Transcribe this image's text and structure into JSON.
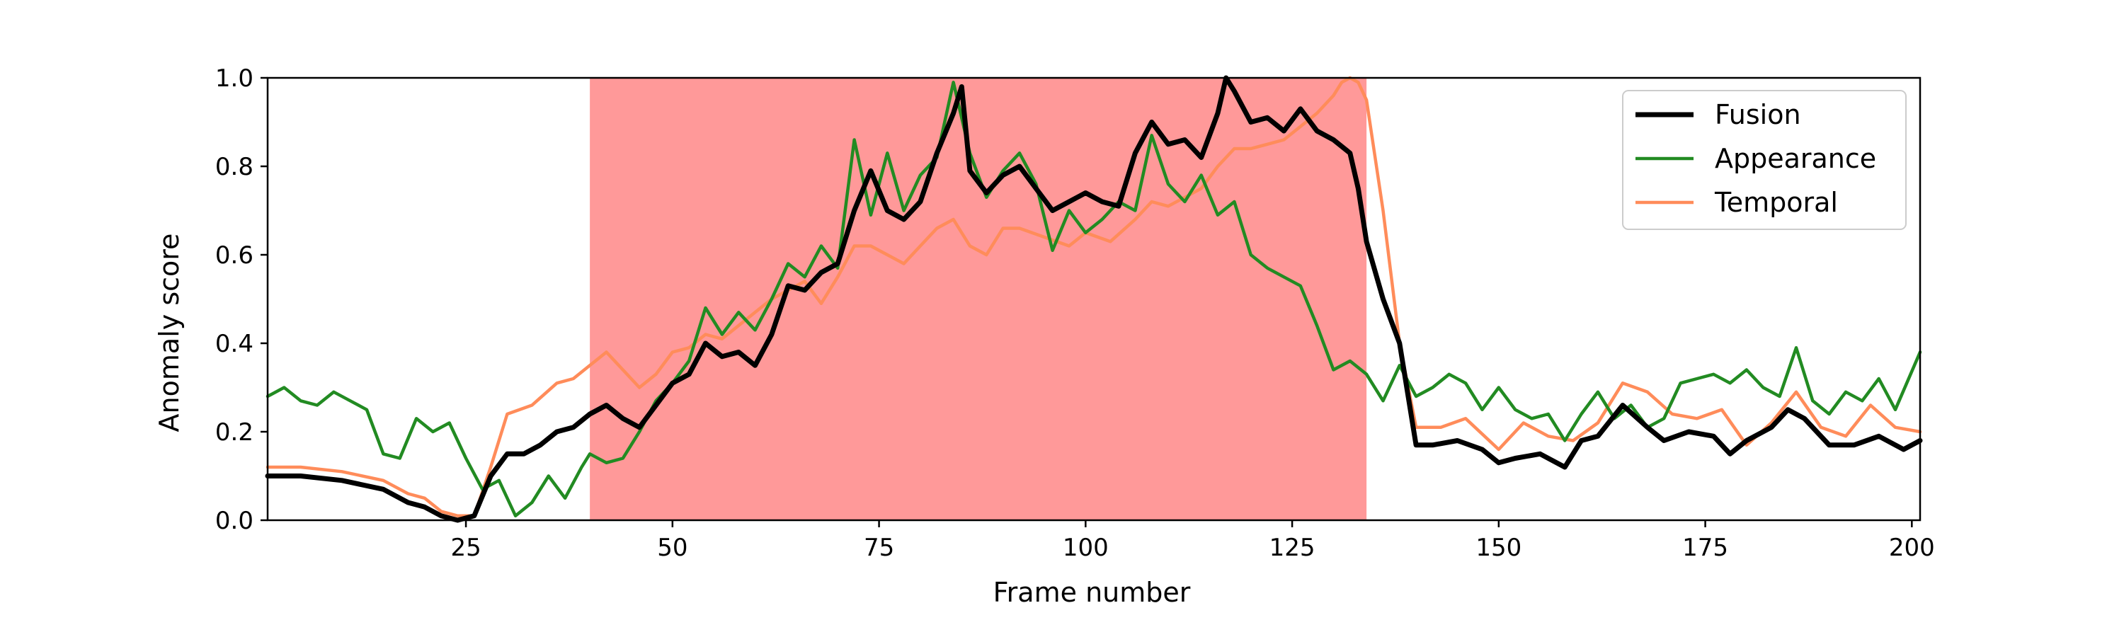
{
  "chart_data": {
    "type": "line",
    "xlabel": "Frame number",
    "ylabel": "Anomaly score",
    "xlim": [
      1,
      201
    ],
    "ylim": [
      0.0,
      1.0
    ],
    "xticks": [
      25,
      50,
      75,
      100,
      125,
      150,
      175,
      200
    ],
    "yticks": [
      0.0,
      0.2,
      0.4,
      0.6,
      0.8,
      1.0
    ],
    "xtick_labels": [
      "25",
      "50",
      "75",
      "100",
      "125",
      "150",
      "175",
      "200"
    ],
    "ytick_labels": [
      "0.0",
      "0.2",
      "0.4",
      "0.6",
      "0.8",
      "1.0"
    ],
    "highlight": {
      "x_start": 40,
      "x_end": 134,
      "color": "#ff9999"
    },
    "grid": false,
    "legend_position": "top-right",
    "series": [
      {
        "name": "Fusion",
        "color": "#000000",
        "x": [
          1,
          5,
          10,
          15,
          18,
          20,
          22,
          24,
          26,
          28,
          30,
          32,
          34,
          36,
          38,
          40,
          42,
          44,
          46,
          48,
          50,
          52,
          54,
          56,
          58,
          60,
          62,
          64,
          66,
          68,
          70,
          72,
          74,
          76,
          78,
          80,
          82,
          84,
          85,
          86,
          88,
          90,
          92,
          94,
          96,
          98,
          100,
          102,
          104,
          106,
          108,
          110,
          112,
          114,
          116,
          117,
          118,
          120,
          122,
          124,
          126,
          128,
          130,
          132,
          133,
          134,
          136,
          138,
          140,
          142,
          145,
          148,
          150,
          152,
          155,
          158,
          160,
          162,
          165,
          168,
          170,
          173,
          176,
          178,
          180,
          183,
          185,
          187,
          190,
          193,
          196,
          199,
          201
        ],
        "y": [
          0.1,
          0.1,
          0.09,
          0.07,
          0.04,
          0.03,
          0.01,
          0.0,
          0.01,
          0.1,
          0.15,
          0.15,
          0.17,
          0.2,
          0.21,
          0.24,
          0.26,
          0.23,
          0.21,
          0.26,
          0.31,
          0.33,
          0.4,
          0.37,
          0.38,
          0.35,
          0.42,
          0.53,
          0.52,
          0.56,
          0.58,
          0.7,
          0.79,
          0.7,
          0.68,
          0.72,
          0.83,
          0.92,
          0.98,
          0.79,
          0.74,
          0.78,
          0.8,
          0.75,
          0.7,
          0.72,
          0.74,
          0.72,
          0.71,
          0.83,
          0.9,
          0.85,
          0.86,
          0.82,
          0.92,
          1.0,
          0.97,
          0.9,
          0.91,
          0.88,
          0.93,
          0.88,
          0.86,
          0.83,
          0.75,
          0.63,
          0.5,
          0.4,
          0.17,
          0.17,
          0.18,
          0.16,
          0.13,
          0.14,
          0.15,
          0.12,
          0.18,
          0.19,
          0.26,
          0.21,
          0.18,
          0.2,
          0.19,
          0.15,
          0.18,
          0.21,
          0.25,
          0.23,
          0.17,
          0.17,
          0.19,
          0.16,
          0.18
        ]
      },
      {
        "name": "Appearance",
        "color": "#228b22",
        "x": [
          1,
          3,
          5,
          7,
          9,
          11,
          13,
          15,
          17,
          19,
          21,
          23,
          25,
          27,
          29,
          31,
          33,
          35,
          37,
          39,
          40,
          42,
          44,
          46,
          48,
          50,
          52,
          54,
          56,
          58,
          60,
          62,
          64,
          66,
          68,
          70,
          72,
          74,
          76,
          78,
          80,
          82,
          84,
          86,
          88,
          90,
          92,
          94,
          96,
          98,
          100,
          102,
          104,
          106,
          108,
          110,
          112,
          114,
          116,
          118,
          120,
          122,
          124,
          126,
          128,
          130,
          132,
          134,
          136,
          138,
          140,
          142,
          144,
          146,
          148,
          150,
          152,
          154,
          156,
          158,
          160,
          162,
          164,
          166,
          168,
          170,
          172,
          174,
          176,
          178,
          180,
          182,
          184,
          186,
          188,
          190,
          192,
          194,
          196,
          198,
          201
        ],
        "y": [
          0.28,
          0.3,
          0.27,
          0.26,
          0.29,
          0.27,
          0.25,
          0.15,
          0.14,
          0.23,
          0.2,
          0.22,
          0.14,
          0.07,
          0.09,
          0.01,
          0.04,
          0.1,
          0.05,
          0.12,
          0.15,
          0.13,
          0.14,
          0.2,
          0.27,
          0.31,
          0.36,
          0.48,
          0.42,
          0.47,
          0.43,
          0.5,
          0.58,
          0.55,
          0.62,
          0.57,
          0.86,
          0.69,
          0.83,
          0.7,
          0.78,
          0.82,
          0.99,
          0.83,
          0.73,
          0.79,
          0.83,
          0.76,
          0.61,
          0.7,
          0.65,
          0.68,
          0.72,
          0.7,
          0.87,
          0.76,
          0.72,
          0.78,
          0.69,
          0.72,
          0.6,
          0.57,
          0.55,
          0.53,
          0.44,
          0.34,
          0.36,
          0.33,
          0.27,
          0.35,
          0.28,
          0.3,
          0.33,
          0.31,
          0.25,
          0.3,
          0.25,
          0.23,
          0.24,
          0.18,
          0.24,
          0.29,
          0.23,
          0.26,
          0.21,
          0.23,
          0.31,
          0.32,
          0.33,
          0.31,
          0.34,
          0.3,
          0.28,
          0.39,
          0.27,
          0.24,
          0.29,
          0.27,
          0.32,
          0.25,
          0.38
        ]
      },
      {
        "name": "Temporal",
        "color": "#ff8c5a",
        "x": [
          1,
          5,
          10,
          15,
          18,
          20,
          22,
          24,
          26,
          28,
          30,
          33,
          36,
          38,
          40,
          42,
          44,
          46,
          48,
          50,
          52,
          54,
          56,
          58,
          60,
          62,
          64,
          66,
          68,
          70,
          72,
          74,
          76,
          78,
          80,
          82,
          84,
          86,
          88,
          90,
          92,
          95,
          98,
          100,
          103,
          106,
          108,
          110,
          112,
          114,
          116,
          118,
          120,
          122,
          124,
          126,
          128,
          130,
          131,
          132,
          133,
          134,
          136,
          138,
          140,
          143,
          146,
          150,
          153,
          156,
          159,
          162,
          165,
          168,
          171,
          174,
          177,
          180,
          183,
          186,
          189,
          192,
          195,
          198,
          201
        ],
        "y": [
          0.12,
          0.12,
          0.11,
          0.09,
          0.06,
          0.05,
          0.02,
          0.01,
          0.01,
          0.12,
          0.24,
          0.26,
          0.31,
          0.32,
          0.35,
          0.38,
          0.34,
          0.3,
          0.33,
          0.38,
          0.39,
          0.42,
          0.41,
          0.44,
          0.47,
          0.5,
          0.52,
          0.54,
          0.49,
          0.55,
          0.62,
          0.62,
          0.6,
          0.58,
          0.62,
          0.66,
          0.68,
          0.62,
          0.6,
          0.66,
          0.66,
          0.64,
          0.62,
          0.65,
          0.63,
          0.68,
          0.72,
          0.71,
          0.73,
          0.75,
          0.8,
          0.84,
          0.84,
          0.85,
          0.86,
          0.89,
          0.92,
          0.96,
          0.99,
          1.0,
          0.99,
          0.95,
          0.7,
          0.4,
          0.21,
          0.21,
          0.23,
          0.16,
          0.22,
          0.19,
          0.18,
          0.22,
          0.31,
          0.29,
          0.24,
          0.23,
          0.25,
          0.17,
          0.22,
          0.29,
          0.21,
          0.19,
          0.26,
          0.21,
          0.2
        ]
      }
    ]
  }
}
